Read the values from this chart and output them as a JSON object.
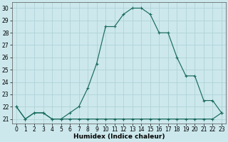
{
  "xlabel": "Humidex (Indice chaleur)",
  "bg_color": "#cce8ec",
  "line_color": "#1a6b5e",
  "grid_color": "#aacfd5",
  "xlim_min": -0.5,
  "xlim_max": 23.5,
  "ylim_min": 20.65,
  "ylim_max": 30.5,
  "yticks": [
    21,
    22,
    23,
    24,
    25,
    26,
    27,
    28,
    29,
    30
  ],
  "xticks": [
    0,
    1,
    2,
    3,
    4,
    5,
    6,
    7,
    8,
    9,
    10,
    11,
    12,
    13,
    14,
    15,
    16,
    17,
    18,
    19,
    20,
    21,
    22,
    23
  ],
  "curve1_x": [
    0,
    1,
    2,
    3,
    4,
    5,
    6,
    7,
    8,
    9,
    10,
    11,
    12,
    13,
    14,
    15,
    16,
    17,
    18,
    19,
    20,
    21,
    22,
    23
  ],
  "curve1_y": [
    22.0,
    21.0,
    21.5,
    21.5,
    21.0,
    21.0,
    21.5,
    22.0,
    23.5,
    25.5,
    28.5,
    28.5,
    29.5,
    30.0,
    30.0,
    29.5,
    28.0,
    28.0,
    26.0,
    24.5,
    24.5,
    22.5,
    22.5,
    21.5
  ],
  "curve2_x": [
    0,
    1,
    2,
    3,
    4,
    5,
    6,
    7,
    8,
    9,
    10,
    11,
    12,
    13,
    14,
    15,
    16,
    17,
    18,
    19,
    20,
    21,
    22,
    23
  ],
  "curve2_y": [
    22.0,
    21.0,
    21.5,
    21.5,
    21.0,
    21.0,
    21.0,
    21.0,
    21.0,
    21.0,
    21.0,
    21.0,
    21.0,
    21.0,
    21.0,
    21.0,
    21.0,
    21.0,
    21.0,
    21.0,
    21.0,
    21.0,
    21.0,
    21.5
  ],
  "tick_fontsize": 5.5,
  "xlabel_fontsize": 6.5
}
